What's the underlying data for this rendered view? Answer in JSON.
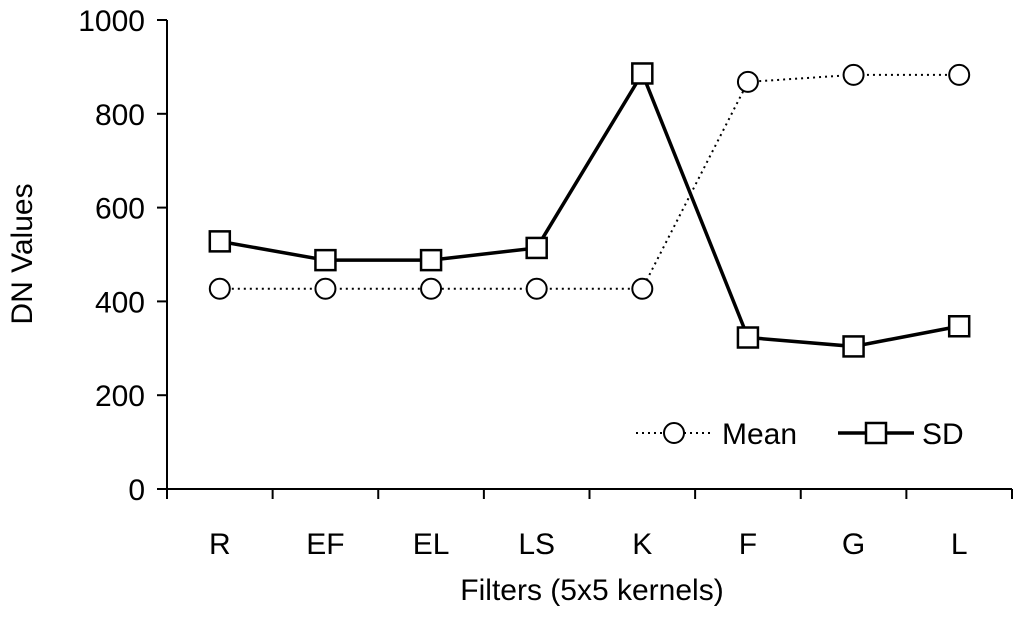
{
  "chart_data": {
    "type": "line",
    "categories": [
      "R",
      "EF",
      "EL",
      "LS",
      "K",
      "F",
      "G",
      "L"
    ],
    "xlabel": "Filters (5x5 kernels)",
    "ylabel": "DN Values",
    "ylim": [
      0,
      1000
    ],
    "yticks": [
      0,
      200,
      400,
      600,
      800,
      1000
    ],
    "grid": false,
    "legend_position": "bottom-right",
    "series": [
      {
        "name": "Mean",
        "marker": "circle",
        "line": "dotted",
        "color": "#000000",
        "values": [
          427,
          427,
          427,
          427,
          427,
          868,
          883,
          883
        ]
      },
      {
        "name": "SD",
        "marker": "square",
        "line": "solid",
        "color": "#000000",
        "values": [
          528,
          488,
          488,
          514,
          886,
          323,
          304,
          347
        ]
      }
    ]
  }
}
